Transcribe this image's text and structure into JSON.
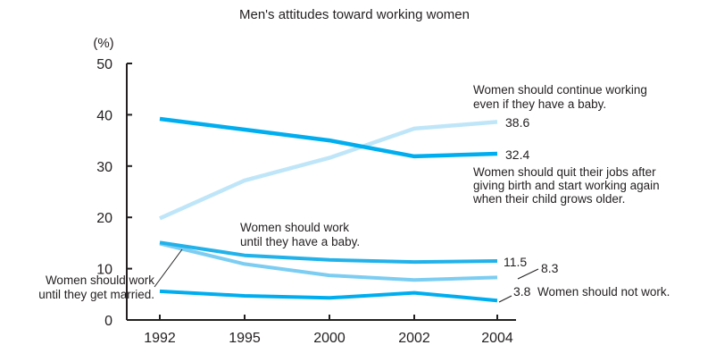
{
  "chart_data": {
    "type": "line",
    "title": "Men's attitudes toward working women",
    "ylabel": "(%)",
    "xlabel": "",
    "x": [
      1992,
      1995,
      2000,
      2002,
      2004
    ],
    "x_tick_labels": [
      "1992",
      "1995",
      "2000",
      "2002",
      "2004"
    ],
    "ylim": [
      0,
      50
    ],
    "y_ticks": [
      0,
      10,
      20,
      30,
      40,
      50
    ],
    "grid": false,
    "legend": "none (series labelled directly)",
    "series": [
      {
        "key": "quit_return",
        "label": [
          "Women should quit their jobs after",
          "giving birth and start working again",
          "when their child grows older."
        ],
        "values": [
          39.2,
          37.1,
          35.0,
          31.9,
          32.4
        ],
        "end_label": "32.4",
        "color": "#00aeef",
        "stroke": 4.5
      },
      {
        "key": "continue",
        "label": [
          "Women should continue working",
          "even if they have a baby."
        ],
        "values": [
          19.8,
          27.2,
          31.6,
          37.3,
          38.6
        ],
        "end_label": "38.6",
        "color": "#bfe6f8",
        "stroke": 4.5
      },
      {
        "key": "until_baby",
        "label": [
          "Women should work",
          "until they have a baby."
        ],
        "values": [
          15.1,
          12.6,
          11.7,
          11.3,
          11.5
        ],
        "end_label": "11.5",
        "color": "#22b2ea",
        "stroke": 4
      },
      {
        "key": "until_married",
        "label": [
          "Women should work",
          "until they get married."
        ],
        "values": [
          14.9,
          10.9,
          8.7,
          7.8,
          8.3
        ],
        "end_label": "8.3",
        "color": "#7ccdf2",
        "stroke": 4
      },
      {
        "key": "not_work",
        "label": [
          "Women should not work."
        ],
        "values": [
          5.6,
          4.7,
          4.3,
          5.3,
          3.8
        ],
        "end_label": "3.8",
        "color": "#00aeef",
        "stroke": 4
      }
    ]
  }
}
